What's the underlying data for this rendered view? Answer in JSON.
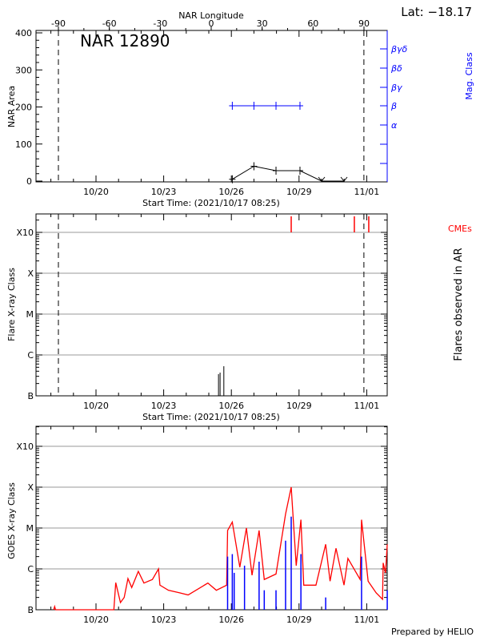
{
  "header": {
    "top_axis_title": "NAR Longitude",
    "latitude": "Lat: −18.17",
    "credit": "Prepared by HELIO"
  },
  "colors": {
    "axis": "#000000",
    "mag_class": "#0000ff",
    "cme": "#ff0000",
    "goes_long": "#ff0000",
    "goes_short": "#0000ff",
    "grid": "#999999"
  },
  "chart_data": [
    {
      "type": "line",
      "title": "NAR 12890",
      "ylabel": "NAR Area",
      "xlabel": "Start Time: (2021/10/17 08:25)",
      "x_ticks": [
        "10/20",
        "10/23",
        "10/26",
        "10/29",
        "11/01"
      ],
      "ylim": [
        0,
        400
      ],
      "y_ticks": [
        "0",
        "100",
        "200",
        "300",
        "400"
      ],
      "top_axis": {
        "label": "NAR Longitude",
        "ticks": [
          "-90",
          "-60",
          "-30",
          "0",
          "30",
          "60",
          "90"
        ],
        "limb_lines": [
          "10/18 08:00",
          "10/31 21:00"
        ]
      },
      "right_axis": {
        "label": "Mag. Class",
        "ticks": [
          "α",
          "β",
          "βγ",
          "βδ",
          "βγδ"
        ]
      },
      "series": [
        {
          "x": [
            "10/26 01:00",
            "10/27 00:00",
            "10/27 23:30",
            "10/29 01:00",
            "10/30 00:00",
            "10/30 23:50"
          ],
          "values": [
            5,
            40,
            28,
            28,
            0,
            0
          ]
        }
      ],
      "mag_class": {
        "x": [
          "10/26 01:00",
          "10/27 00:00",
          "10/27 23:30",
          "10/29 01:00"
        ],
        "values": [
          "β",
          "β",
          "β",
          "β"
        ]
      }
    },
    {
      "type": "bar",
      "ylabel": "Flare X-ray Class",
      "right_label": "Flares observed in AR",
      "xlabel": "Start Time: (2021/10/17 08:25)",
      "x_ticks": [
        "10/20",
        "10/23",
        "10/26",
        "10/29",
        "11/01"
      ],
      "y_ticks": [
        "B",
        "C",
        "M",
        "X",
        "X10"
      ],
      "grid": true,
      "flares": {
        "x": [
          "10/25 10:20",
          "10/25 12:00",
          "10/25 16:00"
        ],
        "values": [
          "B3.4",
          "B3.7",
          "B5.3"
        ]
      },
      "cmes": {
        "label": "CMEs",
        "x": [
          "10/28 15:40",
          "10/31 10:50",
          "11/01 02:10"
        ]
      },
      "limb_lines": [
        "10/18 08:00",
        "10/31 21:00"
      ]
    },
    {
      "type": "line",
      "ylabel": "GOES X-ray Class",
      "x_ticks": [
        "10/20",
        "10/23",
        "10/26",
        "10/29",
        "11/01"
      ],
      "y_ticks": [
        "B",
        "C",
        "M",
        "X",
        "X10"
      ],
      "grid": true,
      "series": [
        {
          "color": "#ff0000",
          "x": [
            "10/18 03:00",
            "10/18 04:00",
            "10/18 05:00",
            "10/20 19:00",
            "10/20 21:00",
            "10/21 02:00",
            "10/21 06:00",
            "10/21 10:00",
            "10/21 14:00",
            "10/21 21:00",
            "10/22 03:00",
            "10/22 12:00",
            "10/22 18:30",
            "10/22 20:00",
            "10/23 05:00",
            "10/23 17:00",
            "10/24 02:00",
            "10/24 23:00",
            "10/25 08:00",
            "10/25 19:00",
            "10/25 20:00",
            "10/26 01:00",
            "10/26 09:00",
            "10/26 16:00",
            "10/26 22:00",
            "10/27 05:30",
            "10/27 11:00",
            "10/27 23:30",
            "10/28 09:40",
            "10/28 15:40",
            "10/28 21:00",
            "10/29 02:00",
            "10/29 05:00",
            "10/29 18:00",
            "10/30 04:20",
            "10/30 09:00",
            "10/30 15:20",
            "10/30 23:50",
            "10/31 04:00",
            "10/31 17:00",
            "10/31 18:30",
            "11/01 01:30",
            "11/01 10:00",
            "11/01 16:50",
            "11/01 17:30",
            "11/01 20:00",
            "11/01 21:50"
          ],
          "values": [
            "B0.9",
            "B1.2",
            "B0.9",
            "B0.9",
            "B4.6",
            "B1.5",
            "B2.0",
            "B5.8",
            "B3.5",
            "B8.7",
            "B4.5",
            "B5.5",
            "C1.0",
            "B4.0",
            "B3.0",
            "B2.6",
            "B2.3",
            "B4.5",
            "B3.0",
            "B4.0",
            "C8.7",
            "M1.4",
            "C1.1",
            "M1.0",
            "B7.0",
            "C8.7",
            "B5.5",
            "B7.5",
            "M2.2",
            "X1.0",
            "C1.2",
            "M1.6",
            "B4.0",
            "B4.0",
            "C4.0",
            "B5.0",
            "C3.2",
            "B4.0",
            "C1.8",
            "B5.5",
            "M1.6",
            "B5.0",
            "B2.6",
            "B1.8",
            "C1.4",
            "B8.0",
            "C4.0"
          ]
        },
        {
          "color": "#0000ff",
          "x": [
            "10/25 20:00",
            "10/26 01:00",
            "10/26 03:00",
            "10/26 14:00",
            "10/27 05:30",
            "10/27 11:00",
            "10/27 23:30",
            "10/28 09:40",
            "10/28 15:40",
            "10/29 02:00",
            "10/30 04:20",
            "10/31 18:30",
            "11/01 21:50"
          ],
          "values": [
            "C2.0",
            "C2.3",
            "B8.0",
            "C1.2",
            "C1.5",
            "B3.0",
            "B3.0",
            "C4.9",
            "M1.9",
            "C2.3",
            "B2.0",
            "C2.0",
            "B3.0"
          ]
        }
      ]
    }
  ]
}
